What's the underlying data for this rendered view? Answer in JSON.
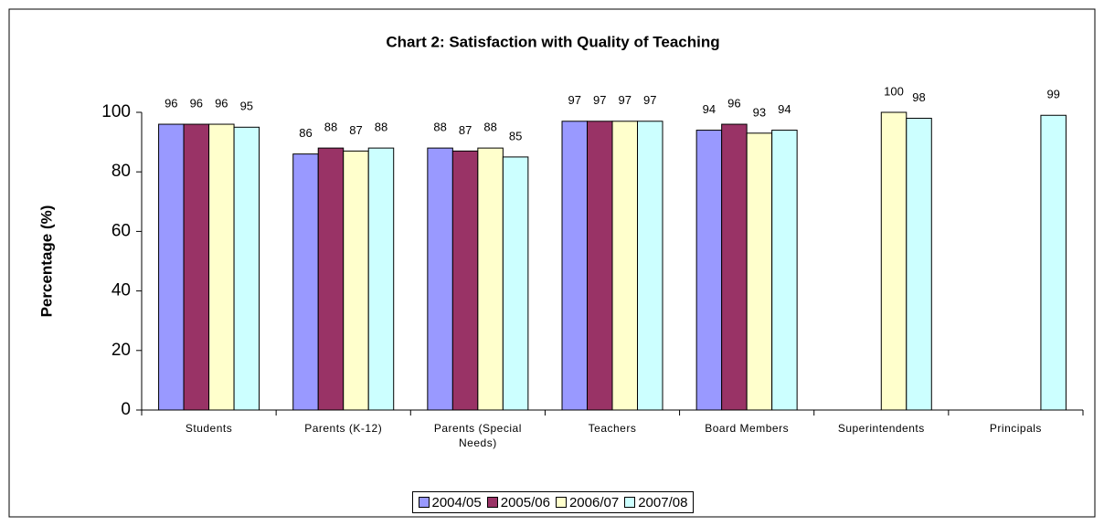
{
  "chart_data": {
    "type": "bar",
    "title": "Chart 2: Satisfaction with Quality of Teaching",
    "y_label": "Percentage (%)",
    "categories": [
      "Students",
      "Parents (K-12)",
      "Parents (Special Needs)",
      "Teachers",
      "Board Members",
      "Superintendents",
      "Principals"
    ],
    "series": [
      {
        "name": "2004/05",
        "color": "#9999ff",
        "values": [
          96,
          86,
          88,
          97,
          94,
          null,
          null
        ]
      },
      {
        "name": "2005/06",
        "color": "#993366",
        "values": [
          96,
          88,
          87,
          97,
          96,
          null,
          null
        ]
      },
      {
        "name": "2006/07",
        "color": "#ffffcc",
        "values": [
          96,
          87,
          88,
          97,
          93,
          100,
          null
        ]
      },
      {
        "name": "2007/08",
        "color": "#ccffff",
        "values": [
          95,
          88,
          85,
          97,
          94,
          98,
          99
        ]
      }
    ],
    "ylim": [
      0,
      100
    ],
    "yticks": [
      0,
      20,
      40,
      60,
      80,
      100
    ],
    "legend": "bottom"
  }
}
